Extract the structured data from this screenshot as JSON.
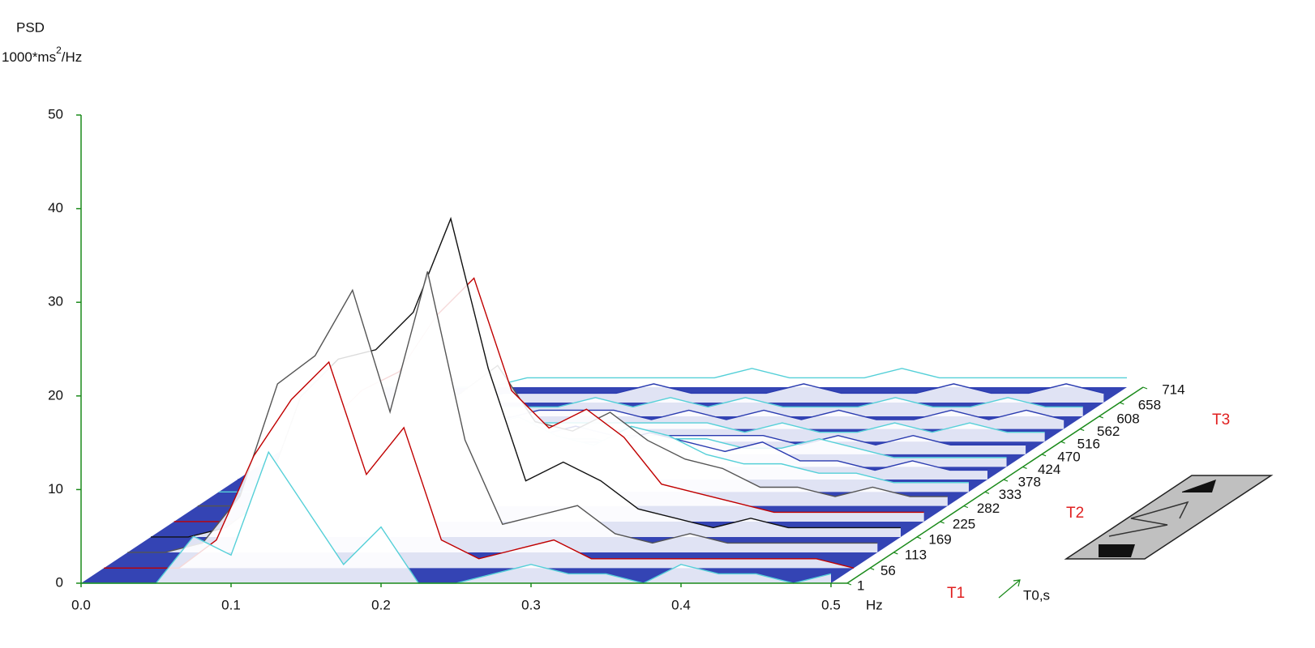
{
  "chart_data": {
    "type": "waterfall",
    "ylabel": "PSD",
    "units": [
      "1000*ms",
      "2",
      "/Hz"
    ],
    "xlabel": "Hz",
    "zlabel": "T0,s",
    "annotations": [
      "T1",
      "T2",
      "T3"
    ],
    "xlim": [
      0,
      0.5
    ],
    "xticks": [
      {
        "value": 0,
        "label": "0.0"
      },
      0.1,
      0.2,
      0.3,
      0.4,
      0.5
    ],
    "ylim": [
      0,
      50
    ],
    "yticks": [
      0,
      10,
      20,
      30,
      40,
      50
    ],
    "zlim": [
      1,
      714
    ],
    "zticks": [
      1,
      56,
      113,
      169,
      225,
      282,
      333,
      378,
      424,
      470,
      516,
      562,
      608,
      658,
      714
    ],
    "axis_color": "#1a8a1a",
    "annotation_color": "#e02020",
    "x": [
      0,
      0.025,
      0.05,
      0.075,
      0.1,
      0.125,
      0.15,
      0.175,
      0.2,
      0.225,
      0.25,
      0.275,
      0.3,
      0.325,
      0.35,
      0.375,
      0.4,
      0.425,
      0.45,
      0.475,
      0.5
    ],
    "rows": [
      {
        "time": 1,
        "color": "#55d0d8",
        "values": [
          0,
          0,
          0,
          5,
          3,
          14,
          8,
          2,
          6,
          0,
          0,
          1,
          2,
          1,
          1,
          0,
          2,
          1,
          1,
          0,
          1
        ]
      },
      {
        "time": 56,
        "color": "#c00000",
        "values": [
          0,
          0,
          0,
          3,
          12,
          18,
          22,
          10,
          15,
          3,
          1,
          2,
          3,
          1,
          1,
          1,
          1,
          1,
          1,
          1,
          0
        ]
      },
      {
        "time": 113,
        "color": "#555555",
        "values": [
          0,
          0,
          1,
          6,
          18,
          21,
          28,
          15,
          30,
          12,
          3,
          4,
          5,
          2,
          1,
          2,
          1,
          1,
          1,
          1,
          1
        ]
      },
      {
        "time": 169,
        "color": "#111111",
        "values": [
          0,
          0,
          1,
          4,
          15,
          19,
          20,
          24,
          34,
          18,
          6,
          8,
          6,
          3,
          2,
          1,
          2,
          1,
          1,
          1,
          1
        ]
      },
      {
        "time": 225,
        "color": "#c00000",
        "values": [
          0,
          0,
          0,
          3,
          10,
          14,
          16,
          22,
          26,
          14,
          10,
          12,
          9,
          4,
          3,
          2,
          1,
          1,
          1,
          1,
          1
        ]
      },
      {
        "time": 282,
        "color": "#555555",
        "values": [
          0,
          0,
          0,
          2,
          6,
          9,
          10,
          12,
          15,
          9,
          8,
          10,
          7,
          5,
          4,
          2,
          2,
          1,
          2,
          1,
          1
        ]
      },
      {
        "time": 333,
        "color": "#55d0d8",
        "values": [
          0,
          0,
          0,
          1,
          4,
          5,
          6,
          7,
          8,
          6,
          5,
          7,
          6,
          4,
          3,
          3,
          2,
          2,
          1,
          1,
          1
        ]
      },
      {
        "time": 378,
        "color": "#2a3bb0",
        "values": [
          0,
          0,
          0,
          1,
          3,
          3,
          4,
          4,
          5,
          4,
          4,
          5,
          4,
          3,
          4,
          2,
          2,
          1,
          2,
          1,
          1
        ]
      },
      {
        "time": 424,
        "color": "#55d0d8",
        "values": [
          0,
          0,
          0,
          1,
          2,
          2,
          3,
          3,
          3,
          3,
          2,
          3,
          3,
          2,
          2,
          3,
          2,
          1,
          1,
          1,
          1
        ]
      },
      {
        "time": 470,
        "color": "#2a3bb0",
        "values": [
          0,
          0,
          0,
          1,
          2,
          2,
          2,
          2,
          3,
          2,
          2,
          2,
          2,
          2,
          1,
          2,
          1,
          2,
          1,
          1,
          1
        ]
      },
      {
        "time": 516,
        "color": "#55d0d8",
        "values": [
          0,
          0,
          0,
          0,
          1,
          2,
          2,
          2,
          2,
          2,
          2,
          2,
          1,
          2,
          1,
          1,
          2,
          1,
          2,
          1,
          1
        ]
      },
      {
        "time": 562,
        "color": "#2a3bb0",
        "values": [
          0,
          0,
          0,
          0,
          1,
          1,
          2,
          2,
          2,
          1,
          2,
          1,
          2,
          1,
          2,
          1,
          1,
          2,
          1,
          2,
          1
        ]
      },
      {
        "time": 608,
        "color": "#55d0d8",
        "values": [
          0,
          0,
          0,
          0,
          1,
          1,
          1,
          2,
          1,
          2,
          1,
          2,
          1,
          1,
          1,
          2,
          1,
          1,
          2,
          1,
          1
        ]
      },
      {
        "time": 658,
        "color": "#2a3bb0",
        "values": [
          0,
          0,
          0,
          0,
          1,
          1,
          1,
          1,
          2,
          1,
          1,
          1,
          2,
          1,
          1,
          1,
          2,
          1,
          1,
          2,
          1
        ]
      },
      {
        "time": 714,
        "color": "#55d0d8",
        "values": [
          0,
          0,
          0,
          0,
          1,
          1,
          1,
          1,
          1,
          1,
          2,
          1,
          1,
          1,
          2,
          1,
          1,
          1,
          1,
          1,
          1
        ]
      }
    ]
  }
}
